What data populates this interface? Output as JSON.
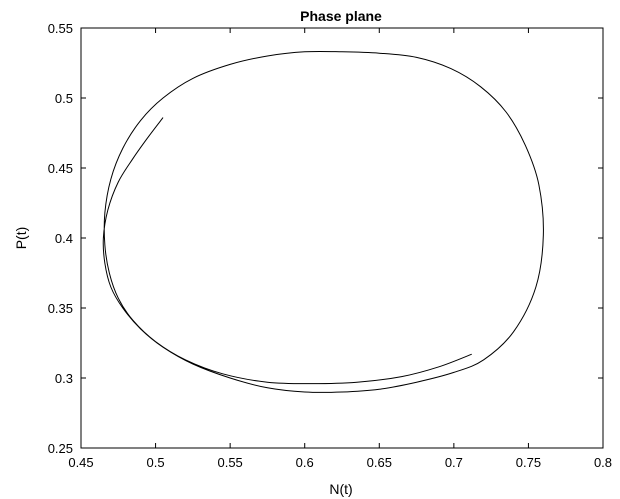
{
  "chart_data": {
    "type": "line",
    "title": "Phase plane",
    "xlabel": "N(t)",
    "ylabel": "P(t)",
    "xlim": [
      0.45,
      0.8
    ],
    "ylim": [
      0.25,
      0.55
    ],
    "grid": false,
    "x_ticks": [
      "0.45",
      "0.5",
      "0.55",
      "0.6",
      "0.65",
      "0.7",
      "0.75",
      "0.8"
    ],
    "y_ticks": [
      "0.25",
      "0.3",
      "0.35",
      "0.4",
      "0.45",
      "0.5",
      "0.55"
    ],
    "line_color": "#000000",
    "series": [
      {
        "x": [
          0.505,
          0.495,
          0.485,
          0.475,
          0.468,
          0.465,
          0.466,
          0.47,
          0.478,
          0.49,
          0.505,
          0.525,
          0.55,
          0.575,
          0.6,
          0.625,
          0.65,
          0.675,
          0.7,
          0.72,
          0.74,
          0.755,
          0.76,
          0.757,
          0.748,
          0.735,
          0.718,
          0.698,
          0.675,
          0.65,
          0.625,
          0.6,
          0.575,
          0.55,
          0.525,
          0.505,
          0.49,
          0.478,
          0.47,
          0.466,
          0.466,
          0.469,
          0.475,
          0.485,
          0.5,
          0.52,
          0.545,
          0.575,
          0.605,
          0.635,
          0.665,
          0.69,
          0.712
        ],
        "y": [
          0.486,
          0.472,
          0.457,
          0.44,
          0.42,
          0.4,
          0.382,
          0.365,
          0.35,
          0.335,
          0.322,
          0.31,
          0.3,
          0.293,
          0.29,
          0.29,
          0.292,
          0.297,
          0.304,
          0.313,
          0.333,
          0.365,
          0.402,
          0.438,
          0.466,
          0.49,
          0.508,
          0.521,
          0.529,
          0.532,
          0.533,
          0.533,
          0.53,
          0.524,
          0.514,
          0.5,
          0.484,
          0.464,
          0.442,
          0.418,
          0.395,
          0.375,
          0.357,
          0.341,
          0.326,
          0.313,
          0.303,
          0.297,
          0.296,
          0.297,
          0.301,
          0.308,
          0.317
        ]
      }
    ]
  }
}
